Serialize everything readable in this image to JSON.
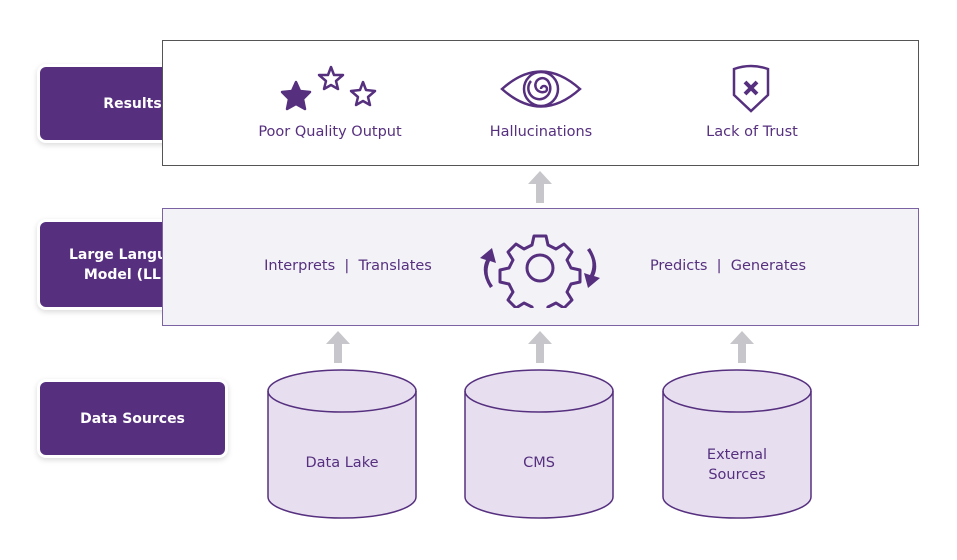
{
  "layers": {
    "results": {
      "label": "Results",
      "items": [
        {
          "label": "Poor Quality Output",
          "icon": "stars-rating-icon"
        },
        {
          "label": "Hallucinations",
          "icon": "spiral-eye-icon"
        },
        {
          "label": "Lack of Trust",
          "icon": "shield-x-icon"
        }
      ]
    },
    "llm": {
      "label": "Large Language Model (LLM)",
      "left_text": "Interprets  |  Translates",
      "right_text": "Predicts  |  Generates",
      "icon": "gear-cycle-icon"
    },
    "data_sources": {
      "label": "Data Sources",
      "items": [
        "Data Lake",
        "CMS",
        "External Sources"
      ]
    }
  },
  "colors": {
    "primary": "#56307f",
    "llm_bg": "#f3f2f7",
    "cylinder_fill": "#e7dff0",
    "arrow": "#c6c6cb"
  }
}
